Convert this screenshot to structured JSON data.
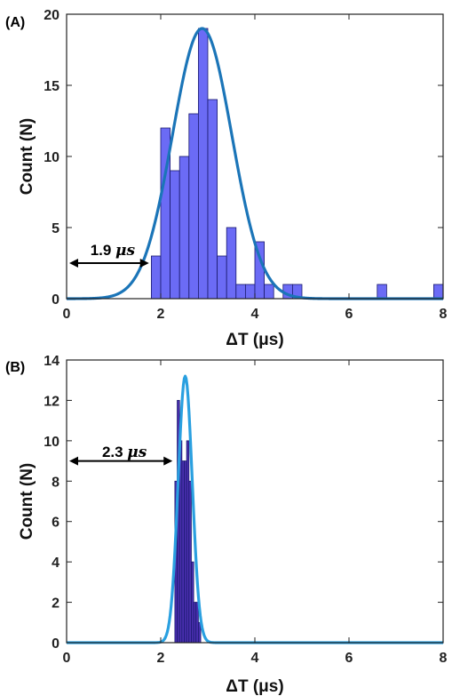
{
  "chart_data": [
    {
      "panel_label": "(A)",
      "type": "bar",
      "xlabel": "ΔT (μs)",
      "ylabel": "Count (N)",
      "xlim": [
        0,
        8
      ],
      "ylim": [
        0,
        20
      ],
      "xticks": [
        0,
        2,
        4,
        6,
        8
      ],
      "yticks": [
        0,
        5,
        10,
        15,
        20
      ],
      "bin_width": 0.2,
      "bar_color": "#6b6bf5",
      "bar_edge": "#1a1a6e",
      "fit_color": "#1b75b8",
      "bins": [
        {
          "x0": 1.8,
          "count": 3
        },
        {
          "x0": 2.0,
          "count": 12
        },
        {
          "x0": 2.2,
          "count": 9
        },
        {
          "x0": 2.4,
          "count": 10
        },
        {
          "x0": 2.6,
          "count": 13
        },
        {
          "x0": 2.8,
          "count": 19
        },
        {
          "x0": 3.0,
          "count": 14
        },
        {
          "x0": 3.2,
          "count": 3
        },
        {
          "x0": 3.4,
          "count": 5
        },
        {
          "x0": 3.6,
          "count": 1
        },
        {
          "x0": 3.8,
          "count": 1
        },
        {
          "x0": 4.0,
          "count": 4
        },
        {
          "x0": 4.2,
          "count": 1
        },
        {
          "x0": 4.6,
          "count": 1
        },
        {
          "x0": 4.8,
          "count": 1
        },
        {
          "x0": 6.6,
          "count": 1
        },
        {
          "x0": 7.8,
          "count": 1
        }
      ],
      "fit": {
        "type": "gaussian",
        "mean": 2.88,
        "sigma": 0.63,
        "peak": 19
      },
      "annotation": {
        "value_text": "1.9",
        "unit_text": "μs",
        "arrow_from_x": 0,
        "arrow_to_x": 1.75,
        "arrow_y": 2.5
      }
    },
    {
      "panel_label": "(B)",
      "type": "bar",
      "xlabel": "ΔT (μs)",
      "ylabel": "Count (N)",
      "xlim": [
        0,
        8
      ],
      "ylim": [
        0,
        14
      ],
      "xticks": [
        0,
        2,
        4,
        6,
        8
      ],
      "yticks": [
        0,
        2,
        4,
        6,
        8,
        10,
        12,
        14
      ],
      "bin_width": 0.05,
      "bar_color": "#4b2fb0",
      "bar_edge": "#1a1a6e",
      "fit_color": "#2aa0e0",
      "bins": [
        {
          "x0": 2.3,
          "count": 8
        },
        {
          "x0": 2.35,
          "count": 12
        },
        {
          "x0": 2.4,
          "count": 10
        },
        {
          "x0": 2.45,
          "count": 9
        },
        {
          "x0": 2.5,
          "count": 9
        },
        {
          "x0": 2.55,
          "count": 10
        },
        {
          "x0": 2.6,
          "count": 8
        },
        {
          "x0": 2.65,
          "count": 4
        },
        {
          "x0": 2.7,
          "count": 2
        },
        {
          "x0": 2.75,
          "count": 2
        },
        {
          "x0": 2.8,
          "count": 1
        }
      ],
      "fit": {
        "type": "gaussian",
        "mean": 2.52,
        "sigma": 0.15,
        "peak": 13.2
      },
      "annotation": {
        "value_text": "2.3",
        "unit_text": "μs",
        "arrow_from_x": 0,
        "arrow_to_x": 2.25,
        "arrow_y": 9
      }
    }
  ]
}
